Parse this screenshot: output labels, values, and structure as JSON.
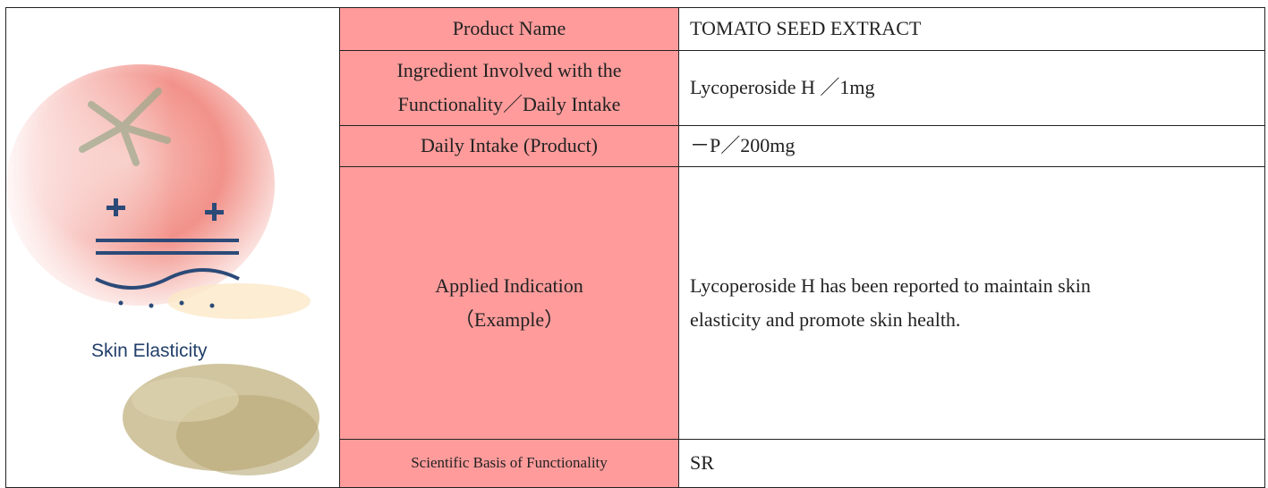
{
  "image": {
    "caption": "Skin Elasticity"
  },
  "table": {
    "rows": [
      {
        "label": "Product Name",
        "value": "TOMATO SEED EXTRACT"
      },
      {
        "label": "Ingredient Involved with the\nFunctionality／Daily Intake",
        "value": "Lycoperoside H ／1mg"
      },
      {
        "label": "Daily Intake (Product)",
        "value": "－P／200mg"
      },
      {
        "label": "Applied Indication\n（Example）",
        "value": "Lycoperoside H has been reported to maintain skin\nelasticity and promote skin health."
      },
      {
        "label": "Scientific Basis of Functionality",
        "value": "SR"
      }
    ]
  }
}
